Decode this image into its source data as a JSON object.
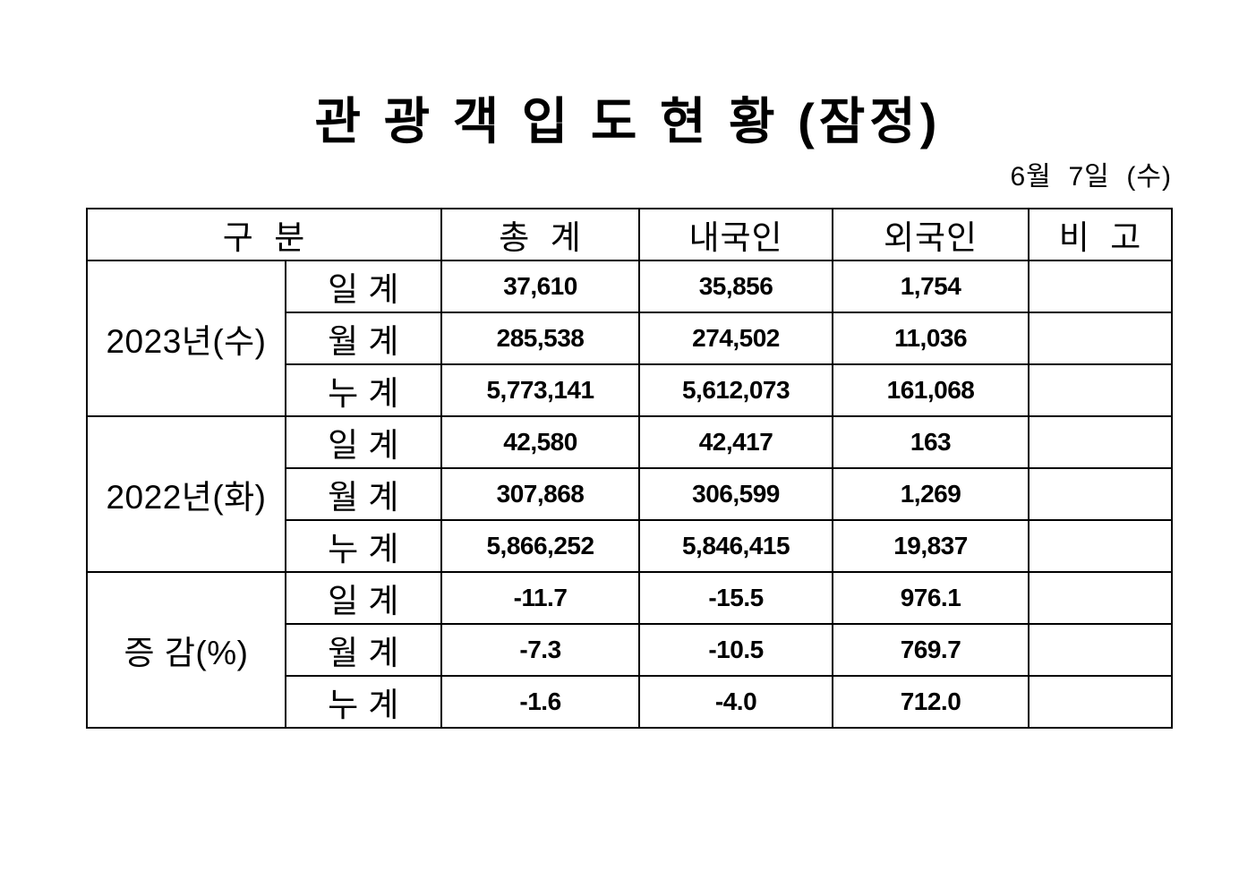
{
  "title": "관 광 객 입 도 현 황 (잠정)",
  "date": "6월  7일  (수)",
  "table": {
    "headers": {
      "category": "구  분",
      "total": "총  계",
      "domestic": "내국인",
      "foreign": "외국인",
      "note": "비  고"
    },
    "groups": [
      {
        "label": "2023년(수)",
        "rows": [
          {
            "sub": "일 계",
            "total": "37,610",
            "domestic": "35,856",
            "foreign": "1,754",
            "note": ""
          },
          {
            "sub": "월 계",
            "total": "285,538",
            "domestic": "274,502",
            "foreign": "11,036",
            "note": ""
          },
          {
            "sub": "누 계",
            "total": "5,773,141",
            "domestic": "5,612,073",
            "foreign": "161,068",
            "note": ""
          }
        ]
      },
      {
        "label": "2022년(화)",
        "rows": [
          {
            "sub": "일 계",
            "total": "42,580",
            "domestic": "42,417",
            "foreign": "163",
            "note": ""
          },
          {
            "sub": "월 계",
            "total": "307,868",
            "domestic": "306,599",
            "foreign": "1,269",
            "note": ""
          },
          {
            "sub": "누 계",
            "total": "5,866,252",
            "domestic": "5,846,415",
            "foreign": "19,837",
            "note": ""
          }
        ]
      },
      {
        "label": "증 감(%)",
        "rows": [
          {
            "sub": "일 계",
            "total": "-11.7",
            "domestic": "-15.5",
            "foreign": "976.1",
            "note": ""
          },
          {
            "sub": "월 계",
            "total": "-7.3",
            "domestic": "-10.5",
            "foreign": "769.7",
            "note": ""
          },
          {
            "sub": "누 계",
            "total": "-1.6",
            "domestic": "-4.0",
            "foreign": "712.0",
            "note": ""
          }
        ]
      }
    ]
  },
  "colors": {
    "text": "#000000",
    "border": "#000000",
    "background": "#ffffff"
  }
}
